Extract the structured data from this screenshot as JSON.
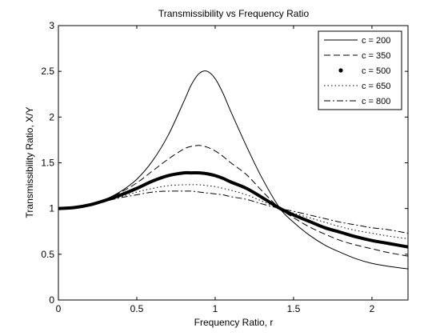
{
  "chart_data": {
    "type": "line",
    "title": "Transmissibility vs Frequency Ratio",
    "xlabel": "Frequency Ratio, r",
    "ylabel": "Transmissibility Ratio, X/Y",
    "xlim": [
      0,
      2.23
    ],
    "ylim": [
      0,
      3
    ],
    "xticks": [
      "0",
      "0.5",
      "1",
      "1.5",
      "2"
    ],
    "xtick_values": [
      0,
      0.5,
      1,
      1.5,
      2
    ],
    "yticks": [
      "0",
      "0.5",
      "1",
      "1.5",
      "2",
      "2.5",
      "3"
    ],
    "ytick_values": [
      0,
      0.5,
      1,
      1.5,
      2,
      2.5,
      3
    ],
    "grid": false,
    "legend_position": "top-right",
    "x": [
      0,
      0.1,
      0.2,
      0.3,
      0.4,
      0.5,
      0.6,
      0.7,
      0.8,
      0.85,
      0.9,
      0.95,
      1.0,
      1.05,
      1.1,
      1.2,
      1.3,
      1.414,
      1.5,
      1.6,
      1.7,
      1.8,
      1.9,
      2.0,
      2.1,
      2.23
    ],
    "series": [
      {
        "name": "c = 200",
        "style": "solid",
        "values": [
          1.0,
          1.01,
          1.04,
          1.1,
          1.19,
          1.32,
          1.52,
          1.8,
          2.17,
          2.36,
          2.48,
          2.5,
          2.42,
          2.26,
          2.06,
          1.68,
          1.33,
          1.0,
          0.85,
          0.71,
          0.6,
          0.52,
          0.45,
          0.4,
          0.37,
          0.34
        ]
      },
      {
        "name": "c = 350",
        "style": "dashed",
        "values": [
          1.0,
          1.01,
          1.04,
          1.1,
          1.18,
          1.28,
          1.41,
          1.54,
          1.65,
          1.68,
          1.69,
          1.67,
          1.63,
          1.57,
          1.5,
          1.37,
          1.19,
          1.0,
          0.9,
          0.8,
          0.72,
          0.65,
          0.6,
          0.56,
          0.52,
          0.48
        ]
      },
      {
        "name": "c = 500",
        "style": "thick",
        "values": [
          1.0,
          1.01,
          1.04,
          1.09,
          1.15,
          1.22,
          1.3,
          1.36,
          1.39,
          1.39,
          1.39,
          1.38,
          1.36,
          1.33,
          1.29,
          1.22,
          1.12,
          1.0,
          0.93,
          0.86,
          0.79,
          0.74,
          0.69,
          0.65,
          0.62,
          0.58
        ]
      },
      {
        "name": "c = 650",
        "style": "dotted",
        "values": [
          1.0,
          1.01,
          1.04,
          1.08,
          1.13,
          1.18,
          1.22,
          1.25,
          1.26,
          1.26,
          1.26,
          1.25,
          1.24,
          1.22,
          1.2,
          1.15,
          1.08,
          1.0,
          0.95,
          0.9,
          0.85,
          0.8,
          0.76,
          0.73,
          0.7,
          0.67
        ]
      },
      {
        "name": "c = 800",
        "style": "dashdot",
        "values": [
          1.0,
          1.01,
          1.04,
          1.08,
          1.12,
          1.15,
          1.18,
          1.19,
          1.19,
          1.19,
          1.18,
          1.17,
          1.16,
          1.15,
          1.13,
          1.1,
          1.05,
          1.0,
          0.97,
          0.93,
          0.89,
          0.85,
          0.82,
          0.79,
          0.77,
          0.73
        ]
      }
    ]
  }
}
